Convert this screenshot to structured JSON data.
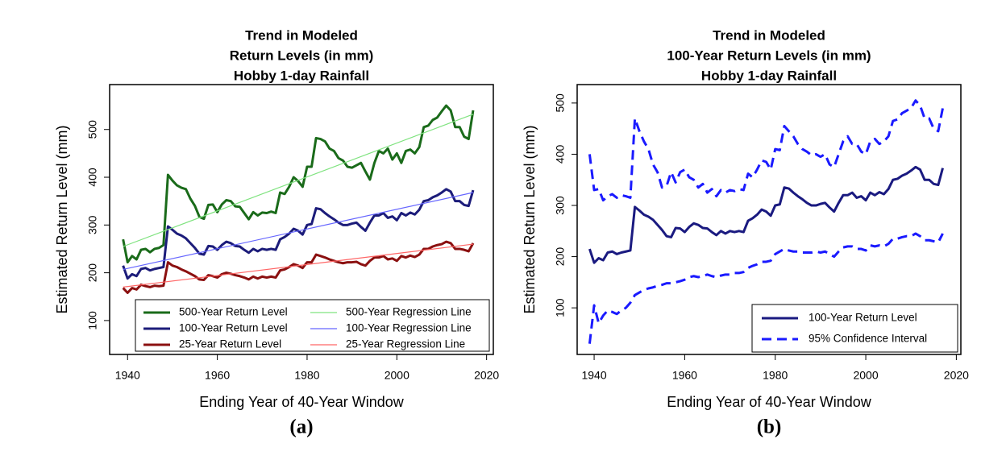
{
  "chart_data": [
    {
      "type": "line",
      "title": [
        "Trend in Modeled",
        "Return Levels (in mm)",
        "Hobby 1-day Rainfall"
      ],
      "xlabel": "Ending Year of 40-Year Window",
      "ylabel": "Estimated Return Level (mm)",
      "caption": "(a)",
      "xlim": [
        1936,
        2021.5
      ],
      "ylim": [
        29,
        594
      ],
      "xticks": [
        1940,
        1960,
        1980,
        2000,
        2020
      ],
      "yticks": [
        100,
        200,
        300,
        400,
        500
      ],
      "legend": "bottom",
      "x": [
        1939,
        1940,
        1941,
        1942,
        1943,
        1944,
        1945,
        1946,
        1947,
        1948,
        1949,
        1950,
        1951,
        1952,
        1953,
        1954,
        1955,
        1956,
        1957,
        1958,
        1959,
        1960,
        1961,
        1962,
        1963,
        1964,
        1965,
        1966,
        1967,
        1968,
        1969,
        1970,
        1971,
        1972,
        1973,
        1974,
        1975,
        1976,
        1977,
        1978,
        1979,
        1980,
        1981,
        1982,
        1983,
        1984,
        1985,
        1986,
        1987,
        1988,
        1989,
        1990,
        1991,
        1992,
        1993,
        1994,
        1995,
        1996,
        1997,
        1998,
        1999,
        2000,
        2001,
        2002,
        2003,
        2004,
        2005,
        2006,
        2007,
        2008,
        2009,
        2010,
        2011,
        2012,
        2013,
        2014,
        2015,
        2016,
        2017
      ],
      "series": [
        {
          "name": "500-Year Return Level",
          "color": "#1a6b1a",
          "width": 3,
          "values": [
            270,
            222,
            235,
            228,
            248,
            250,
            243,
            250,
            252,
            258,
            405,
            393,
            383,
            378,
            375,
            355,
            340,
            317,
            313,
            342,
            343,
            327,
            343,
            352,
            350,
            339,
            338,
            325,
            312,
            327,
            320,
            326,
            325,
            328,
            325,
            368,
            365,
            380,
            400,
            392,
            380,
            422,
            422,
            482,
            480,
            475,
            460,
            455,
            440,
            435,
            422,
            420,
            425,
            430,
            412,
            395,
            430,
            455,
            450,
            460,
            437,
            450,
            430,
            455,
            458,
            450,
            463,
            505,
            508,
            520,
            525,
            538,
            550,
            540,
            505,
            505,
            485,
            480,
            540
          ]
        },
        {
          "name": "100-Year Return Level",
          "color": "#1c1c7a",
          "width": 3,
          "values": [
            215,
            188,
            197,
            193,
            208,
            210,
            205,
            208,
            210,
            212,
            297,
            290,
            282,
            278,
            272,
            262,
            252,
            240,
            238,
            256,
            255,
            248,
            258,
            265,
            262,
            256,
            255,
            248,
            242,
            250,
            245,
            250,
            248,
            250,
            248,
            270,
            275,
            282,
            292,
            288,
            280,
            300,
            302,
            335,
            333,
            325,
            318,
            312,
            305,
            300,
            300,
            303,
            305,
            296,
            288,
            305,
            320,
            320,
            325,
            315,
            318,
            310,
            325,
            320,
            326,
            322,
            332,
            350,
            352,
            358,
            362,
            368,
            375,
            370,
            350,
            350,
            342,
            340,
            373
          ]
        },
        {
          "name": "25-Year Return Level",
          "color": "#8b1010",
          "width": 3,
          "values": [
            168,
            158,
            168,
            165,
            175,
            172,
            170,
            173,
            172,
            173,
            222,
            215,
            212,
            207,
            203,
            198,
            193,
            186,
            185,
            195,
            193,
            190,
            197,
            200,
            198,
            195,
            193,
            190,
            186,
            192,
            188,
            192,
            190,
            192,
            190,
            205,
            207,
            212,
            218,
            215,
            210,
            222,
            222,
            238,
            235,
            232,
            228,
            225,
            222,
            220,
            222,
            222,
            223,
            218,
            215,
            225,
            232,
            232,
            235,
            228,
            230,
            225,
            235,
            232,
            236,
            233,
            238,
            250,
            250,
            255,
            258,
            260,
            265,
            262,
            250,
            250,
            248,
            245,
            262
          ]
        },
        {
          "name": "500-Year Regression Line",
          "color": "#7fe37f",
          "width": 1.2,
          "x": [
            1939,
            2017
          ],
          "values": [
            255,
            532
          ]
        },
        {
          "name": "100-Year Regression Line",
          "color": "#6666ff",
          "width": 1.2,
          "x": [
            1939,
            2017
          ],
          "values": [
            207,
            368
          ]
        },
        {
          "name": "25-Year Regression Line",
          "color": "#ff6666",
          "width": 1.2,
          "x": [
            1939,
            2017
          ],
          "values": [
            170,
            260
          ]
        }
      ]
    },
    {
      "type": "line",
      "title": [
        "Trend in Modeled",
        "100-Year Return Levels (in mm)",
        "Hobby 1-day Rainfall"
      ],
      "xlabel": "Ending Year of 40-Year Window",
      "ylabel": "Estimated Return Level (mm)",
      "caption": "(b)",
      "xlim": [
        1936.25,
        2021
      ],
      "ylim": [
        9,
        536
      ],
      "xticks": [
        1940,
        1960,
        1980,
        2000,
        2020
      ],
      "yticks": [
        100,
        200,
        300,
        400,
        500
      ],
      "legend": "bottom right",
      "x": [
        1939,
        1940,
        1941,
        1942,
        1943,
        1944,
        1945,
        1946,
        1947,
        1948,
        1949,
        1950,
        1951,
        1952,
        1953,
        1954,
        1955,
        1956,
        1957,
        1958,
        1959,
        1960,
        1961,
        1962,
        1963,
        1964,
        1965,
        1966,
        1967,
        1968,
        1969,
        1970,
        1971,
        1972,
        1973,
        1974,
        1975,
        1976,
        1977,
        1978,
        1979,
        1980,
        1981,
        1982,
        1983,
        1984,
        1985,
        1986,
        1987,
        1988,
        1989,
        1990,
        1991,
        1992,
        1993,
        1994,
        1995,
        1996,
        1997,
        1998,
        1999,
        2000,
        2001,
        2002,
        2003,
        2004,
        2005,
        2006,
        2007,
        2008,
        2009,
        2010,
        2011,
        2012,
        2013,
        2014,
        2015,
        2016,
        2017
      ],
      "series": [
        {
          "name": "100-Year Return Level",
          "color": "#1a1a80",
          "width": 3,
          "values": [
            215,
            188,
            197,
            193,
            208,
            210,
            205,
            208,
            210,
            212,
            297,
            290,
            282,
            278,
            272,
            262,
            252,
            240,
            238,
            256,
            255,
            248,
            258,
            265,
            262,
            256,
            255,
            248,
            242,
            250,
            245,
            250,
            248,
            250,
            248,
            270,
            275,
            282,
            292,
            288,
            280,
            300,
            302,
            335,
            333,
            325,
            318,
            312,
            305,
            300,
            300,
            303,
            305,
            296,
            288,
            305,
            320,
            320,
            325,
            315,
            318,
            310,
            325,
            320,
            326,
            322,
            332,
            350,
            352,
            358,
            362,
            368,
            375,
            370,
            350,
            350,
            342,
            340,
            373
          ]
        },
        {
          "name": "95% Confidence Interval",
          "color": "#1a1aff",
          "width": 3,
          "linestyle": "dashed",
          "values": [
            400,
            330,
            332,
            310,
            318,
            322,
            315,
            320,
            318,
            315,
            470,
            445,
            425,
            410,
            380,
            365,
            335,
            338,
            365,
            345,
            365,
            370,
            355,
            350,
            335,
            342,
            325,
            332,
            318,
            330,
            325,
            330,
            328,
            332,
            330,
            362,
            355,
            370,
            388,
            385,
            370,
            410,
            408,
            455,
            445,
            435,
            420,
            410,
            405,
            398,
            400,
            395,
            400,
            380,
            375,
            400,
            425,
            435,
            420,
            420,
            405,
            400,
            425,
            430,
            420,
            425,
            435,
            465,
            468,
            480,
            485,
            490,
            505,
            495,
            470,
            470,
            450,
            445,
            490
          ]
        },
        {
          "color": "#1a1aff",
          "width": 3,
          "linestyle": "dashed",
          "values": [
            30,
            105,
            70,
            85,
            95,
            92,
            88,
            95,
            100,
            110,
            125,
            130,
            135,
            138,
            140,
            143,
            145,
            148,
            148,
            150,
            152,
            155,
            160,
            162,
            160,
            162,
            165,
            162,
            160,
            163,
            165,
            165,
            168,
            168,
            170,
            178,
            182,
            185,
            190,
            190,
            192,
            205,
            210,
            215,
            212,
            210,
            210,
            208,
            208,
            208,
            210,
            208,
            210,
            205,
            200,
            210,
            218,
            220,
            220,
            215,
            215,
            212,
            222,
            220,
            222,
            220,
            225,
            235,
            235,
            238,
            240,
            240,
            245,
            240,
            232,
            232,
            230,
            228,
            245
          ]
        }
      ]
    }
  ]
}
